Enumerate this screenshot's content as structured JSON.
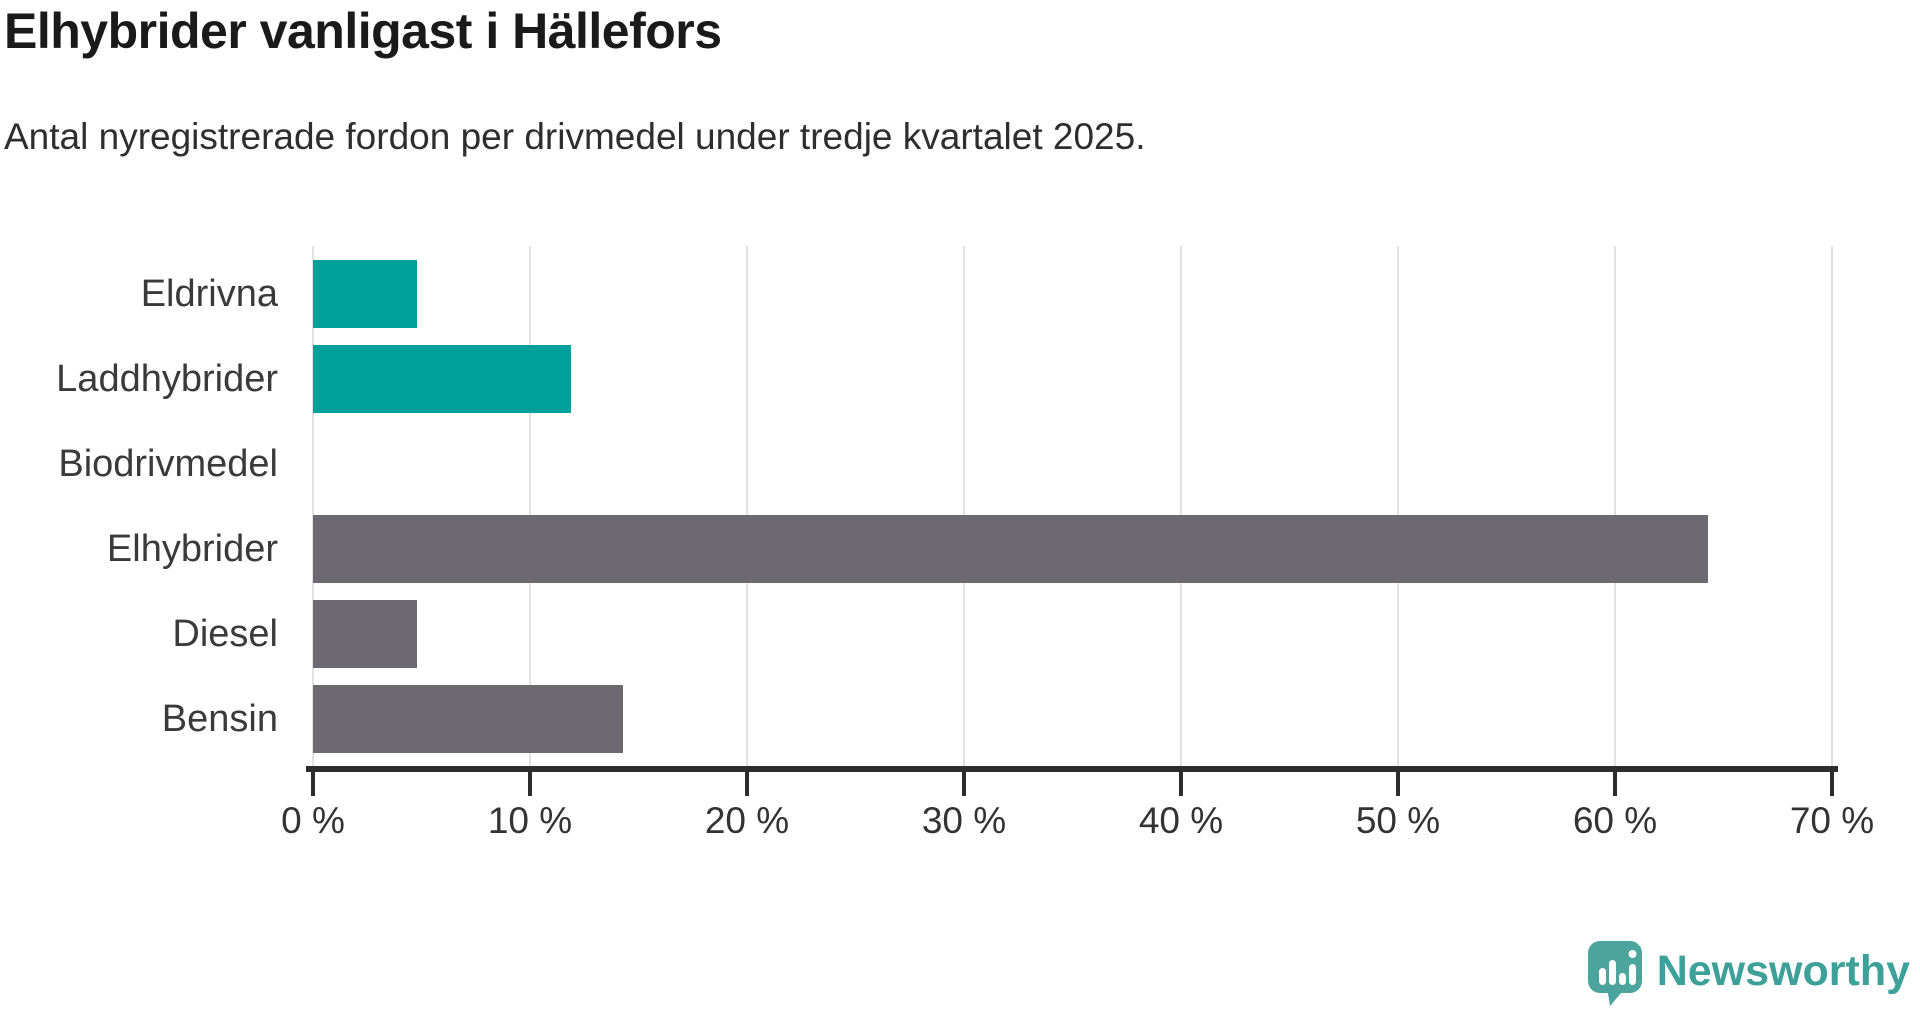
{
  "title": "Elhybrider vanligast i Hällefors",
  "subtitle": "Antal nyregistrerade fordon per drivmedel under tredje kvartalet 2025.",
  "branding": {
    "name": "Newsworthy",
    "icon": "newsworthy-speech-bubble-bar-chart-icon",
    "icon_color": "#4ba59d",
    "text_color": "#3da19a"
  },
  "chart_data": {
    "type": "bar",
    "orientation": "horizontal",
    "title": "Elhybrider vanligast i Hällefors",
    "subtitle": "Antal nyregistrerade fordon per drivmedel under tredje kvartalet 2025.",
    "categories": [
      "Eldrivna",
      "Laddhybrider",
      "Biodrivmedel",
      "Elhybrider",
      "Diesel",
      "Bensin"
    ],
    "values": [
      4.8,
      11.9,
      0,
      64.3,
      4.8,
      14.3
    ],
    "unit": "%",
    "bar_colors": [
      "#00a09a",
      "#00a09a",
      "#00a09a",
      "#6c6a70",
      "#6c6a70",
      "#6c6a70"
    ],
    "highlight_color": "#00a09a",
    "default_color": "#6c6a70",
    "xlim": [
      0,
      70
    ],
    "x_tick_values": [
      0,
      10,
      20,
      30,
      40,
      50,
      60,
      70
    ],
    "x_tick_labels": [
      "0 %",
      "10 %",
      "20 %",
      "30 %",
      "40 %",
      "50 %",
      "60 %",
      "70 %"
    ],
    "xlabel": "",
    "ylabel": "",
    "grid": true,
    "gridline_color": "#e2e2e2",
    "axis_color": "#2d2d2d",
    "legend": false
  }
}
